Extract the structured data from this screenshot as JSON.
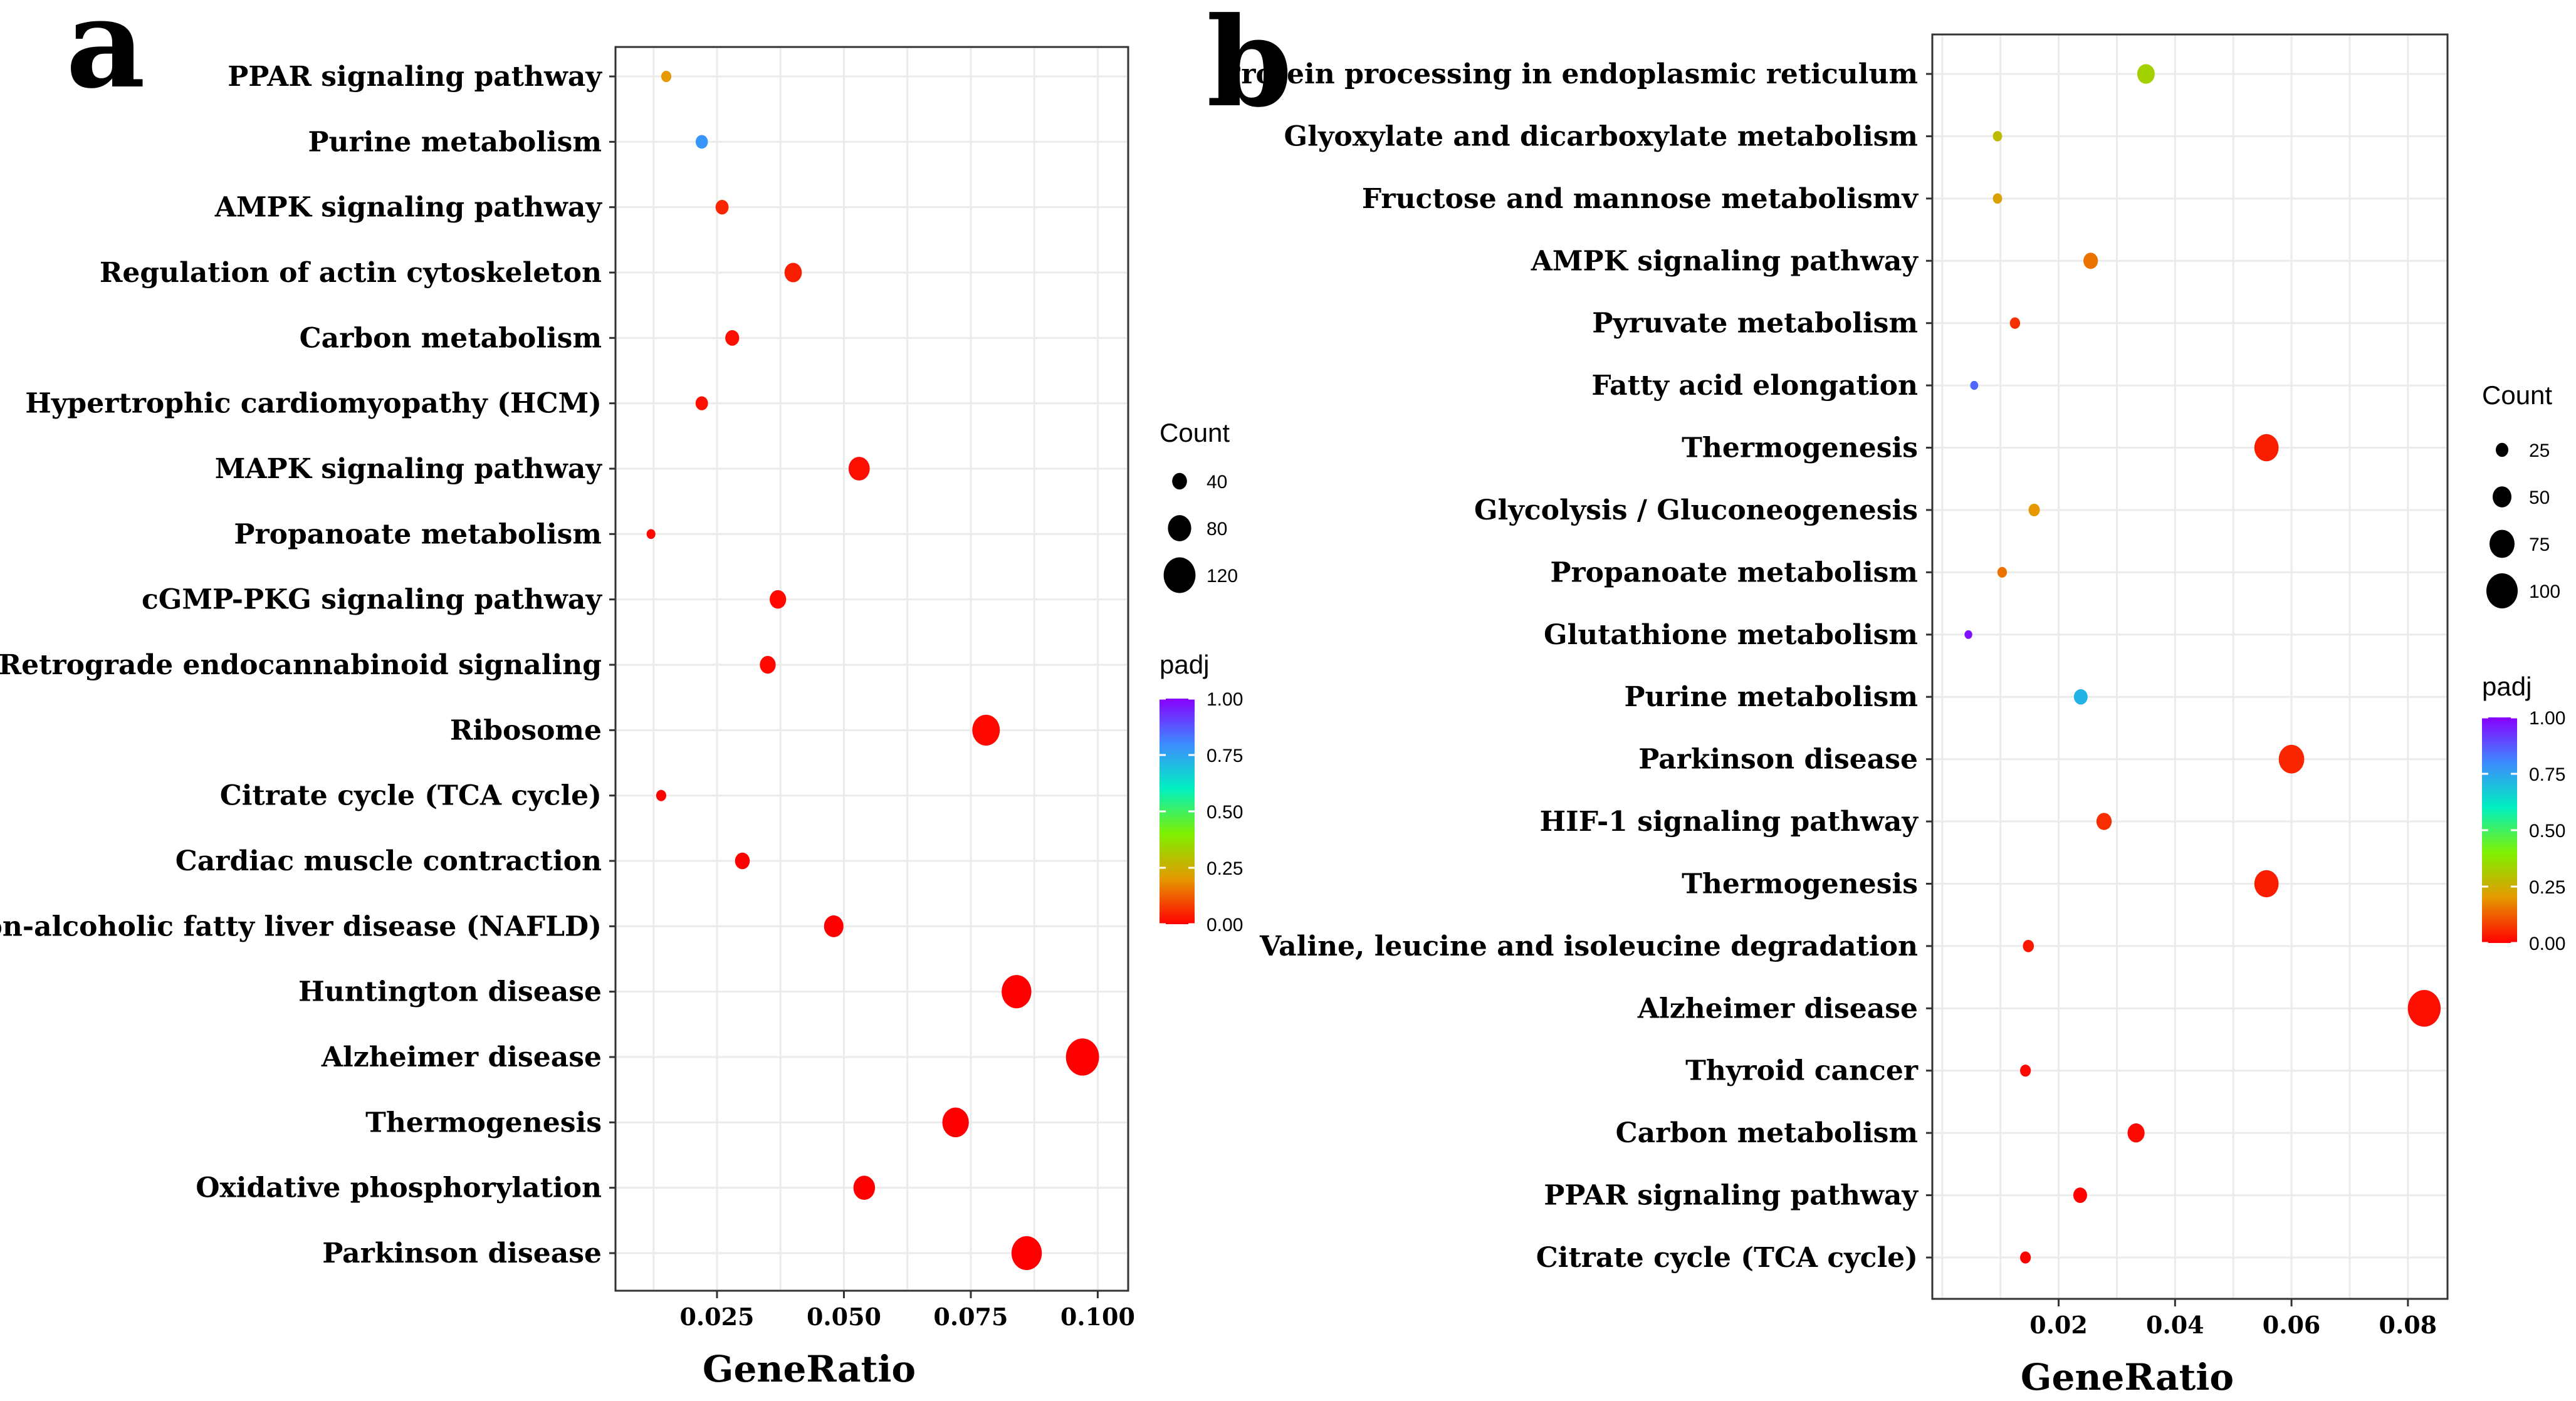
{
  "chart_data": [
    {
      "panel": "a",
      "type": "scatter",
      "xlabel": "GeneRatio",
      "ylabel": "",
      "x_ticks": [
        0.025,
        0.05,
        0.075,
        0.1
      ],
      "x_tick_labels": [
        "0.025",
        "0.050",
        "0.075",
        "0.100"
      ],
      "xlim": [
        0.005,
        0.106
      ],
      "size_legend": {
        "title": "Count",
        "values": [
          40,
          80,
          120
        ]
      },
      "color_legend": {
        "title": "padj",
        "ticks": [
          1.0,
          0.75,
          0.5,
          0.25,
          0.0
        ],
        "tick_labels": [
          "1.00",
          "0.75",
          "0.50",
          "0.25",
          "0.00"
        ]
      },
      "points": [
        {
          "term": "PPAR signaling pathway",
          "gene_ratio": 0.015,
          "count": 18,
          "padj": 0.2
        },
        {
          "term": "Purine metabolism",
          "gene_ratio": 0.022,
          "count": 28,
          "padj": 0.78
        },
        {
          "term": "AMPK signaling pathway",
          "gene_ratio": 0.026,
          "count": 32,
          "padj": 0.05
        },
        {
          "term": "Regulation of actin cytoskeleton",
          "gene_ratio": 0.04,
          "count": 52,
          "padj": 0.04
        },
        {
          "term": "Carbon metabolism",
          "gene_ratio": 0.028,
          "count": 36,
          "padj": 0.02
        },
        {
          "term": "Hypertrophic cardiomyopathy (HCM)",
          "gene_ratio": 0.022,
          "count": 29,
          "padj": 0.02
        },
        {
          "term": "MAPK signaling pathway",
          "gene_ratio": 0.053,
          "count": 70,
          "padj": 0.02
        },
        {
          "term": "Propanoate metabolism",
          "gene_ratio": 0.012,
          "count": 12,
          "padj": 0.01
        },
        {
          "term": "cGMP-PKG signaling pathway",
          "gene_ratio": 0.037,
          "count": 48,
          "padj": 0.01
        },
        {
          "term": "Retrograde endocannabinoid signaling",
          "gene_ratio": 0.035,
          "count": 45,
          "padj": 0.01
        },
        {
          "term": "Ribosome",
          "gene_ratio": 0.078,
          "count": 100,
          "padj": 0.01
        },
        {
          "term": "Citrate cycle (TCA cycle)",
          "gene_ratio": 0.014,
          "count": 18,
          "padj": 0.0
        },
        {
          "term": "Cardiac muscle contraction",
          "gene_ratio": 0.03,
          "count": 40,
          "padj": 0.0
        },
        {
          "term": "Non-alcoholic fatty liver disease (NAFLD)",
          "gene_ratio": 0.048,
          "count": 62,
          "padj": 0.0
        },
        {
          "term": "Huntington disease",
          "gene_ratio": 0.084,
          "count": 110,
          "padj": 0.0
        },
        {
          "term": "Alzheimer disease",
          "gene_ratio": 0.097,
          "count": 126,
          "padj": 0.0
        },
        {
          "term": "Thermogenesis",
          "gene_ratio": 0.072,
          "count": 95,
          "padj": 0.0
        },
        {
          "term": "Oxidative phosphorylation",
          "gene_ratio": 0.054,
          "count": 72,
          "padj": 0.0
        },
        {
          "term": "Parkinson disease",
          "gene_ratio": 0.086,
          "count": 113,
          "padj": 0.0
        }
      ]
    },
    {
      "panel": "b",
      "type": "scatter",
      "xlabel": "GeneRatio",
      "ylabel": "",
      "x_ticks": [
        0.02,
        0.04,
        0.06,
        0.08
      ],
      "x_tick_labels": [
        "0.02",
        "0.04",
        "0.06",
        "0.08"
      ],
      "xlim": [
        -0.0017,
        0.0868
      ],
      "size_legend": {
        "title": "Count",
        "values": [
          25,
          50,
          75,
          100
        ]
      },
      "color_legend": {
        "title": "padj",
        "ticks": [
          1.0,
          0.75,
          0.5,
          0.25,
          0.0
        ],
        "tick_labels": [
          "1.00",
          "0.75",
          "0.50",
          "0.25",
          "0.00"
        ]
      },
      "points": [
        {
          "term": "Protein processing in endoplasmic reticulum",
          "gene_ratio": 0.035,
          "count": 45,
          "padj": 0.33
        },
        {
          "term": "Glyoxylate and dicarboxylate metabolism",
          "gene_ratio": 0.0095,
          "count": 12,
          "padj": 0.28
        },
        {
          "term": "Fructose and mannose metabolismv",
          "gene_ratio": 0.0095,
          "count": 12,
          "padj": 0.22
        },
        {
          "term": "AMPK signaling pathway",
          "gene_ratio": 0.0255,
          "count": 33,
          "padj": 0.15
        },
        {
          "term": "Pyruvate metabolism",
          "gene_ratio": 0.0125,
          "count": 16,
          "padj": 0.06
        },
        {
          "term": "Fatty acid elongation",
          "gene_ratio": 0.0055,
          "count": 7,
          "padj": 0.85
        },
        {
          "term": "Thermogenesis",
          "gene_ratio": 0.0557,
          "count": 72,
          "padj": 0.04
        },
        {
          "term": "Glycolysis / Gluconeogenesis",
          "gene_ratio": 0.0158,
          "count": 20,
          "padj": 0.2
        },
        {
          "term": "Propanoate metabolism",
          "gene_ratio": 0.0103,
          "count": 13,
          "padj": 0.15
        },
        {
          "term": "Glutathione metabolism",
          "gene_ratio": 0.0045,
          "count": 6,
          "padj": 0.98
        },
        {
          "term": "Purine metabolism",
          "gene_ratio": 0.0238,
          "count": 30,
          "padj": 0.72
        },
        {
          "term": "Parkinson disease",
          "gene_ratio": 0.06,
          "count": 77,
          "padj": 0.05
        },
        {
          "term": "HIF-1 signaling pathway",
          "gene_ratio": 0.0278,
          "count": 36,
          "padj": 0.06
        },
        {
          "term": "Thermogenesis",
          "gene_ratio": 0.0557,
          "count": 72,
          "padj": 0.04
        },
        {
          "term": "Valine, leucine and isoleucine degradation",
          "gene_ratio": 0.0148,
          "count": 19,
          "padj": 0.03
        },
        {
          "term": "Alzheimer disease",
          "gene_ratio": 0.0828,
          "count": 106,
          "padj": 0.02
        },
        {
          "term": "Thyroid cancer",
          "gene_ratio": 0.0143,
          "count": 18,
          "padj": 0.01
        },
        {
          "term": "Carbon metabolism",
          "gene_ratio": 0.0333,
          "count": 43,
          "padj": 0.01
        },
        {
          "term": "PPAR signaling pathway",
          "gene_ratio": 0.0237,
          "count": 30,
          "padj": 0.0
        },
        {
          "term": "Citrate cycle (TCA cycle)",
          "gene_ratio": 0.0143,
          "count": 18,
          "padj": 0.0
        }
      ]
    }
  ]
}
